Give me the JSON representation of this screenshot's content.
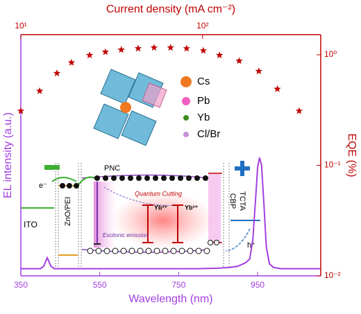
{
  "chart_data": [
    {
      "type": "line",
      "xlabel": "Wavelength (nm)",
      "ylabel": "EL intensity (a.u.)",
      "color": "#a23ee0",
      "xlim": [
        350,
        1110
      ],
      "xticks": [
        350,
        550,
        750,
        950
      ],
      "ylim": [
        0,
        1
      ],
      "x": [
        350,
        370,
        390,
        400,
        408,
        413,
        417,
        421,
        426,
        435,
        450,
        500,
        550,
        600,
        650,
        700,
        750,
        800,
        850,
        880,
        900,
        920,
        930,
        938,
        945,
        950,
        955,
        960,
        966,
        972,
        980,
        990,
        1010,
        1040,
        1070,
        1110
      ],
      "values": [
        0.03,
        0.03,
        0.03,
        0.03,
        0.04,
        0.06,
        0.075,
        0.06,
        0.04,
        0.03,
        0.03,
        0.03,
        0.03,
        0.03,
        0.03,
        0.03,
        0.03,
        0.03,
        0.032,
        0.035,
        0.04,
        0.055,
        0.07,
        0.15,
        0.32,
        0.45,
        0.49,
        0.46,
        0.3,
        0.12,
        0.05,
        0.035,
        0.03,
        0.03,
        0.03,
        0.03
      ],
      "annotations": [
        "Cs",
        "Pb",
        "Yb",
        "Cl/Br",
        "PNC",
        "e⁻",
        "ITO",
        "ZnO/PEI",
        "Quantum Cutting",
        "Yb³⁺",
        "Yb³⁺",
        "Excitonic emission",
        "CBP",
        "TCTA",
        "h⁺"
      ]
    },
    {
      "type": "scatter",
      "xlabel": "Current density (mA cm⁻²)",
      "ylabel": "EQE (%)",
      "color": "#c00000",
      "xscale": "log",
      "yscale": "log",
      "xlim": [
        10,
        447
      ],
      "xticks": [
        {
          "value": 10,
          "label": "10¹"
        },
        {
          "value": 100,
          "label": "10²"
        }
      ],
      "ylim": [
        0.01,
        1.52
      ],
      "yticks": [
        {
          "value": 0.01,
          "label": "10⁻²"
        },
        {
          "value": 0.1,
          "label": "10⁻¹"
        },
        {
          "value": 1,
          "label": "10⁰"
        }
      ],
      "x": [
        10,
        12.7,
        15.8,
        19.0,
        23.9,
        29.2,
        35.7,
        44.2,
        54.1,
        66.7,
        81.7,
        101,
        124,
        159,
        204,
        258,
        340
      ],
      "values": [
        0.31,
        0.47,
        0.68,
        0.85,
        0.99,
        1.06,
        1.11,
        1.14,
        1.16,
        1.16,
        1.14,
        1.09,
        0.99,
        0.88,
        0.71,
        0.49,
        0.31
      ]
    }
  ]
}
